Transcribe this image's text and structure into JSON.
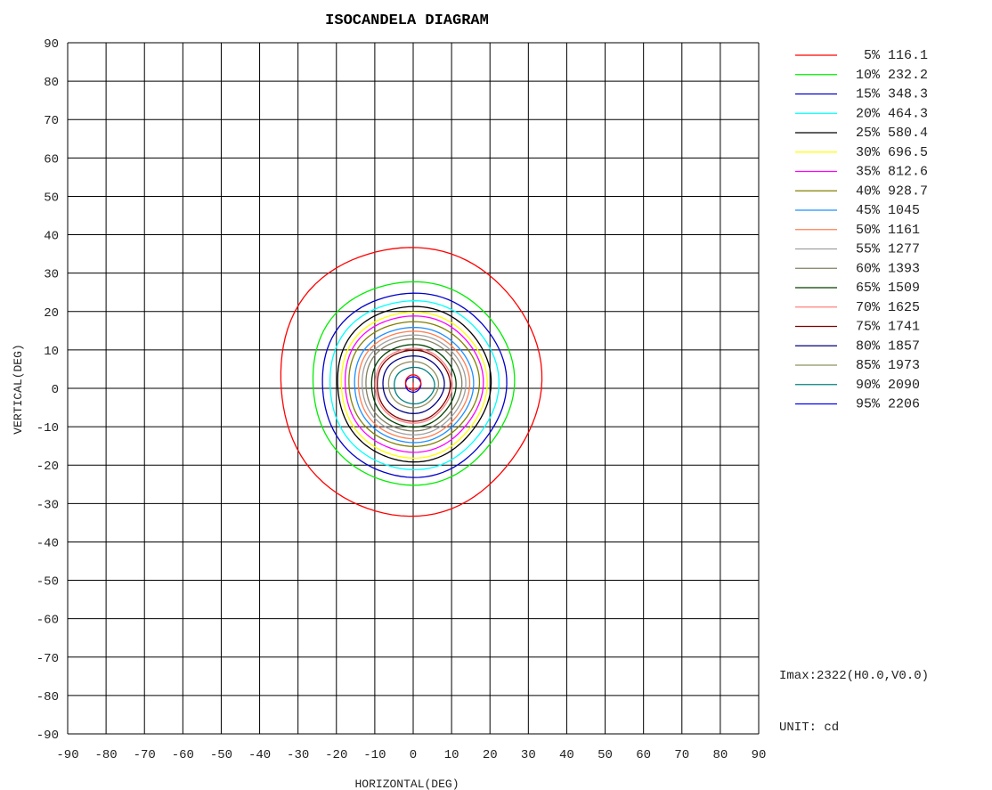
{
  "chart_data": {
    "type": "line",
    "title": "ISOCANDELA DIAGRAM",
    "xlabel": "HORIZONTAL(DEG)",
    "ylabel": "VERTICAL(DEG)",
    "xlim": [
      -90,
      90
    ],
    "ylim": [
      -90,
      90
    ],
    "xticks": [
      "-90",
      "-80",
      "-70",
      "-60",
      "-50",
      "-40",
      "-30",
      "-20",
      "-10",
      "0",
      "10",
      "20",
      "30",
      "40",
      "50",
      "60",
      "70",
      "80",
      "90"
    ],
    "yticks": [
      "90",
      "80",
      "70",
      "60",
      "50",
      "40",
      "30",
      "20",
      "10",
      "0",
      "-10",
      "-20",
      "-30",
      "-40",
      "-50",
      "-60",
      "-70",
      "-80",
      "-90"
    ],
    "grid": true,
    "legend_position": "right",
    "series": [
      {
        "name": "5%",
        "label": "116.1",
        "color": "#ff0000",
        "left": -35.0,
        "right": 33.0,
        "top": 37.0,
        "bottom": -33.0
      },
      {
        "name": "10%",
        "label": "232.2",
        "color": "#00ee00",
        "left": -26.5,
        "right": 26.0,
        "top": 28.0,
        "bottom": -25.0
      },
      {
        "name": "15%",
        "label": "348.3",
        "color": "#0000cc",
        "left": -24.0,
        "right": 24.0,
        "top": 25.0,
        "bottom": -23.0
      },
      {
        "name": "20%",
        "label": "464.3",
        "color": "#00ffff",
        "left": -22.0,
        "right": 22.0,
        "top": 23.0,
        "bottom": -21.0
      },
      {
        "name": "25%",
        "label": "580.4",
        "color": "#000000",
        "left": -20.0,
        "right": 20.0,
        "top": 21.5,
        "bottom": -19.0
      },
      {
        "name": "30%",
        "label": "696.5",
        "color": "#ffff00",
        "left": -19.0,
        "right": 19.0,
        "top": 20.0,
        "bottom": -18.0
      },
      {
        "name": "35%",
        "label": "812.6",
        "color": "#ff00ff",
        "left": -18.0,
        "right": 18.0,
        "top": 19.0,
        "bottom": -16.5
      },
      {
        "name": "40%",
        "label": "928.7",
        "color": "#808000",
        "left": -17.0,
        "right": 17.0,
        "top": 17.5,
        "bottom": -15.0
      },
      {
        "name": "45%",
        "label": "1045",
        "color": "#1e90ff",
        "left": -15.5,
        "right": 15.5,
        "top": 16.0,
        "bottom": -14.0
      },
      {
        "name": "50%",
        "label": "1161",
        "color": "#ff7f50",
        "left": -14.5,
        "right": 14.5,
        "top": 15.0,
        "bottom": -13.0
      },
      {
        "name": "55%",
        "label": "1277",
        "color": "#a0a0a0",
        "left": -13.5,
        "right": 13.5,
        "top": 14.0,
        "bottom": -12.0
      },
      {
        "name": "60%",
        "label": "1393",
        "color": "#808060",
        "left": -12.5,
        "right": 12.5,
        "top": 13.0,
        "bottom": -11.0
      },
      {
        "name": "65%",
        "label": "1509",
        "color": "#004000",
        "left": -11.0,
        "right": 11.0,
        "top": 11.5,
        "bottom": -10.0
      },
      {
        "name": "70%",
        "label": "1625",
        "color": "#ff8080",
        "left": -10.0,
        "right": 10.0,
        "top": 10.5,
        "bottom": -9.0
      },
      {
        "name": "75%",
        "label": "1741",
        "color": "#800000",
        "left": -9.5,
        "right": 9.5,
        "top": 10.0,
        "bottom": -8.5
      },
      {
        "name": "80%",
        "label": "1857",
        "color": "#000080",
        "left": -8.0,
        "right": 8.0,
        "top": 8.5,
        "bottom": -6.5
      },
      {
        "name": "85%",
        "label": "1973",
        "color": "#909060",
        "left": -6.5,
        "right": 6.5,
        "top": 7.0,
        "bottom": -5.0
      },
      {
        "name": "90%",
        "label": "2090",
        "color": "#008080",
        "left": -5.0,
        "right": 5.5,
        "top": 5.5,
        "bottom": -4.0
      },
      {
        "name": "95%",
        "label": "2206",
        "color": "#0000ff",
        "left": -2.0,
        "right": 2.0,
        "top": 3.0,
        "bottom": -1.0
      }
    ],
    "center_marker": {
      "color": "#ff0000",
      "x": 0,
      "y": 1.5,
      "r": 2.0
    }
  },
  "info": {
    "imax": "Imax:2322(H0.0,V0.0)",
    "unit": "UNIT: cd"
  }
}
